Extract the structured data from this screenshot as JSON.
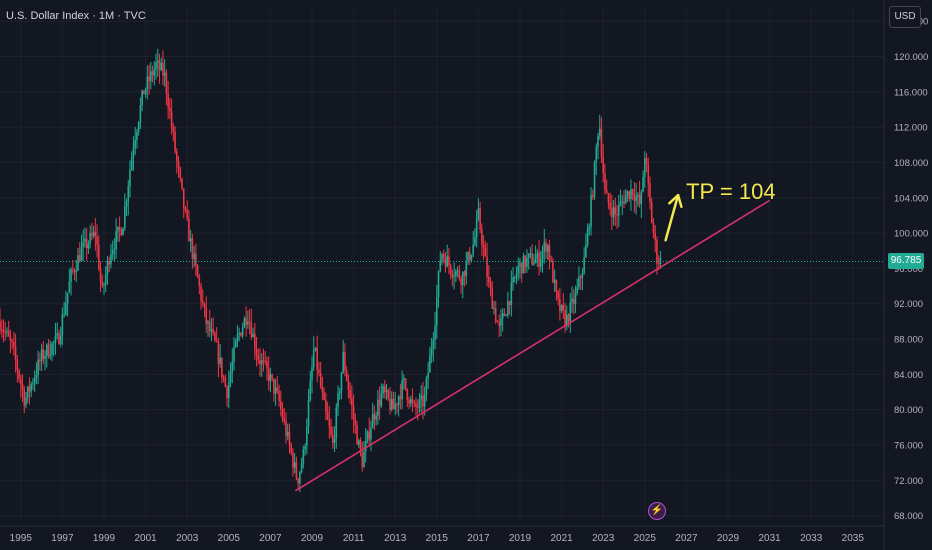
{
  "header": {
    "symbol_line": "U.S. Dollar Index · 1M · TVC"
  },
  "currency_button": "USD",
  "last_price_label": "96.785",
  "annotation_text": "TP = 104",
  "colors": {
    "background": "#131722",
    "up": "#22ab94",
    "down": "#f23645",
    "trendline": "#d9306a",
    "annotation": "#f5e74f",
    "axis_text": "#b2b5be",
    "grid": "#1e222d"
  },
  "chart_data": {
    "type": "candlestick",
    "title": "U.S. Dollar Index · 1M · TVC",
    "x_tick_labels": [
      "1995",
      "1997",
      "1999",
      "2001",
      "2003",
      "2005",
      "2007",
      "2009",
      "2011",
      "2013",
      "2015",
      "2017",
      "2019",
      "2021",
      "2023",
      "2025",
      "2027",
      "2029",
      "2031",
      "2033",
      "2035"
    ],
    "x_range": [
      1994.0,
      2036.5
    ],
    "y_tick_labels": [
      "68.000",
      "72.000",
      "76.000",
      "80.000",
      "84.000",
      "88.000",
      "92.000",
      "96.000",
      "100.000",
      "104.000",
      "108.000",
      "112.000",
      "116.000",
      "120.000",
      "124.000"
    ],
    "y_range": [
      67.5,
      125.5
    ],
    "last_price": 96.785,
    "price_path": [
      [
        1994.0,
        90
      ],
      [
        1994.6,
        87
      ],
      [
        1995.2,
        81
      ],
      [
        1996.0,
        86
      ],
      [
        1996.8,
        88
      ],
      [
        1997.4,
        95
      ],
      [
        1997.9,
        98
      ],
      [
        1998.6,
        100
      ],
      [
        1998.9,
        93
      ],
      [
        1999.3,
        98
      ],
      [
        1999.9,
        101
      ],
      [
        2000.4,
        110
      ],
      [
        2000.9,
        116
      ],
      [
        2001.5,
        119
      ],
      [
        2001.9,
        118
      ],
      [
        2002.5,
        108
      ],
      [
        2002.9,
        102
      ],
      [
        2003.4,
        96
      ],
      [
        2003.9,
        90
      ],
      [
        2004.4,
        87
      ],
      [
        2004.9,
        82
      ],
      [
        2005.4,
        88
      ],
      [
        2005.9,
        91
      ],
      [
        2006.4,
        86
      ],
      [
        2006.9,
        84
      ],
      [
        2007.4,
        81
      ],
      [
        2007.9,
        76
      ],
      [
        2008.3,
        72
      ],
      [
        2008.6,
        75
      ],
      [
        2009.1,
        87
      ],
      [
        2009.6,
        80
      ],
      [
        2010.0,
        76
      ],
      [
        2010.5,
        86
      ],
      [
        2011.0,
        79
      ],
      [
        2011.4,
        74
      ],
      [
        2011.9,
        79
      ],
      [
        2012.4,
        82
      ],
      [
        2012.9,
        80
      ],
      [
        2013.4,
        83
      ],
      [
        2013.9,
        80
      ],
      [
        2014.4,
        81
      ],
      [
        2014.9,
        90
      ],
      [
        2015.2,
        98
      ],
      [
        2015.7,
        96
      ],
      [
        2016.2,
        95
      ],
      [
        2016.8,
        99
      ],
      [
        2017.0,
        102
      ],
      [
        2017.5,
        94
      ],
      [
        2018.0,
        89
      ],
      [
        2018.4,
        92
      ],
      [
        2018.9,
        96
      ],
      [
        2019.4,
        97
      ],
      [
        2019.9,
        97
      ],
      [
        2020.3,
        99
      ],
      [
        2020.8,
        92
      ],
      [
        2021.2,
        90
      ],
      [
        2021.7,
        93
      ],
      [
        2022.1,
        97
      ],
      [
        2022.5,
        105
      ],
      [
        2022.8,
        113
      ],
      [
        2023.1,
        104
      ],
      [
        2023.6,
        102
      ],
      [
        2024.0,
        104
      ],
      [
        2024.4,
        105
      ],
      [
        2024.8,
        103
      ],
      [
        2025.0,
        109
      ],
      [
        2025.3,
        102
      ],
      [
        2025.6,
        97
      ],
      [
        2025.8,
        96.785
      ]
    ],
    "trendline": {
      "from": [
        2008.2,
        70.8
      ],
      "to": [
        2031.0,
        103.7
      ]
    },
    "annotation": {
      "text": "TP = 104",
      "arrow_from": [
        2026.0,
        99.2
      ],
      "arrow_to": [
        2026.6,
        104.3
      ]
    },
    "grid": true
  }
}
